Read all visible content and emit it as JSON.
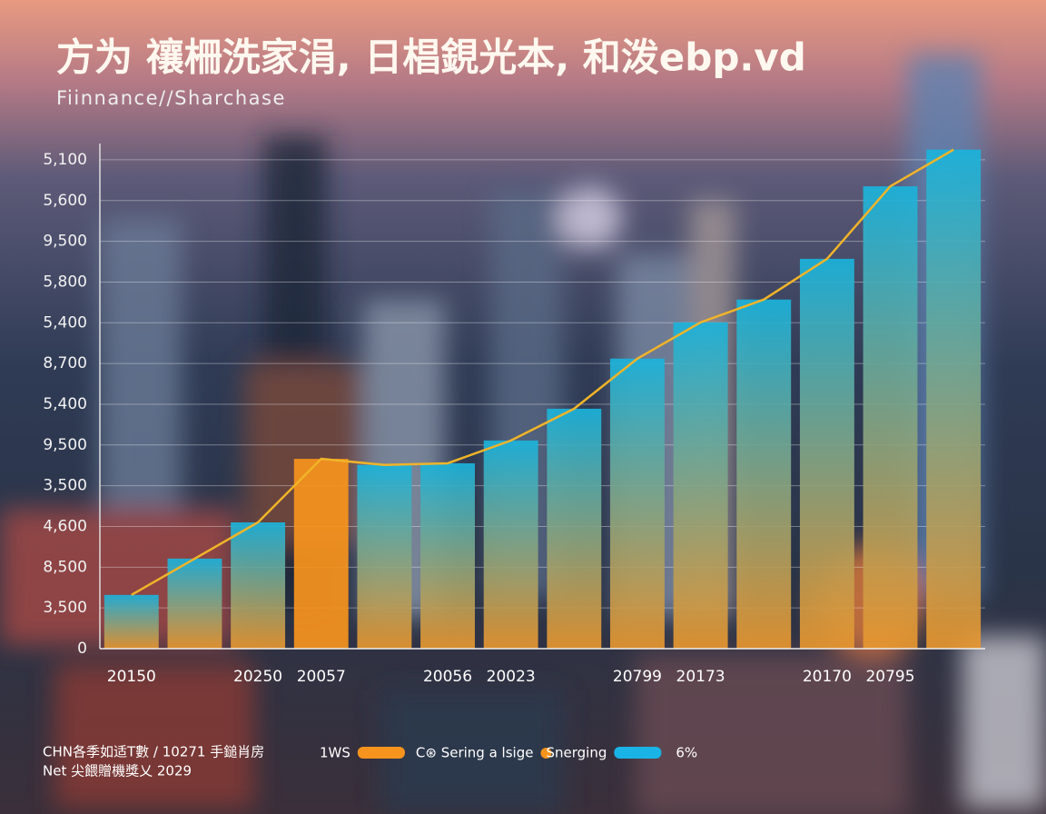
{
  "chart_data": {
    "type": "bar",
    "title": "方为 禳柵洗家涓, 日椙鋧光本, 和泼ebp.vd",
    "subtitle": "Fiinnance//Sharchase",
    "categories": [
      "20150",
      null,
      "20250",
      "20057",
      null,
      "20056",
      "20023",
      null,
      "20799",
      "20173",
      null,
      "20170",
      "20795",
      null
    ],
    "values": [
      1.32,
      2.21,
      3.1,
      4.66,
      4.51,
      4.55,
      5.11,
      5.89,
      7.12,
      8.01,
      8.57,
      9.57,
      11.35,
      12.25
    ],
    "colors": [
      "#e8962e",
      "#1ab3dc"
    ],
    "highlight_index": 3,
    "highlight_color": "#f7941d",
    "line": true,
    "line_color": "#f0b429",
    "ylim": [
      0,
      12.4
    ],
    "yticks": [
      {
        "value": 0,
        "label": "0"
      },
      {
        "value": 1,
        "label": "3,500"
      },
      {
        "value": 2,
        "label": "8,500"
      },
      {
        "value": 3,
        "label": "4,600"
      },
      {
        "value": 4,
        "label": "3,500"
      },
      {
        "value": 5,
        "label": "9,500"
      },
      {
        "value": 6,
        "label": "5,400"
      },
      {
        "value": 7,
        "label": "8,700"
      },
      {
        "value": 8,
        "label": "5,400"
      },
      {
        "value": 9,
        "label": "5,800"
      },
      {
        "value": 10,
        "label": "9,500"
      },
      {
        "value": 11,
        "label": "5,600"
      },
      {
        "value": 12,
        "label": "5,100"
      }
    ],
    "grid": true,
    "legend": [
      {
        "name": "1WS",
        "color": "#f7941d",
        "marker": "bar"
      },
      {
        "name": "C⊛ Sering a lsige",
        "color": "#f7941d",
        "marker": "dot"
      },
      {
        "name": "Snerging",
        "color": "#1ab3e6",
        "marker": "bar"
      }
    ],
    "legend_note": "6%",
    "footnotes": [
      "CHN各季如适T數 / 10271 手鎚肖房",
      "Net 尖餵贈機獎乂 2029"
    ]
  }
}
